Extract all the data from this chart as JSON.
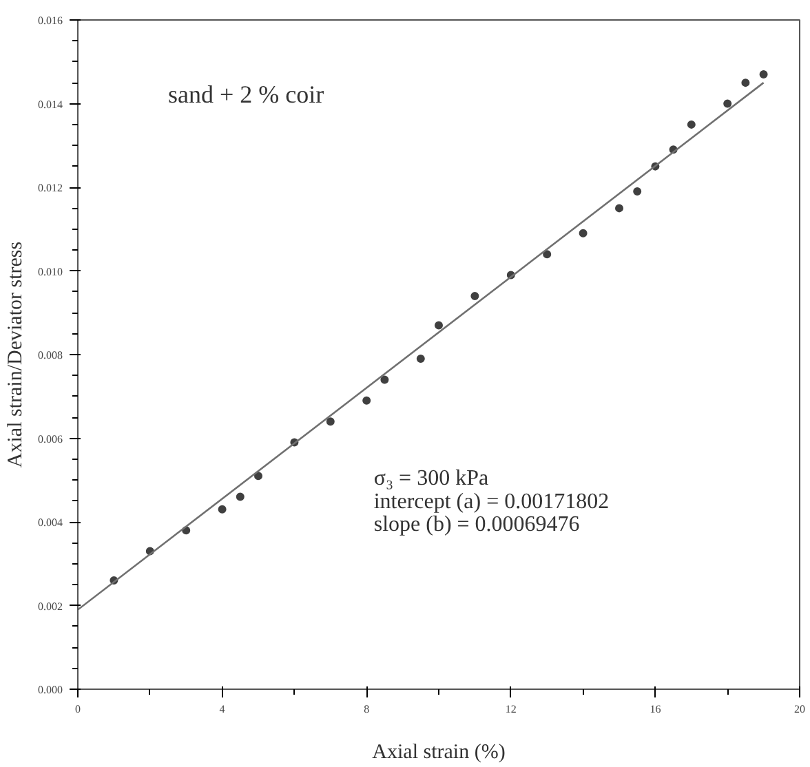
{
  "chart_data": {
    "type": "scatter",
    "xlabel": "Axial strain (%)",
    "ylabel": "Axial strain/Deviator stress",
    "annotations": [
      "sand + 2 % coir",
      "σ₃ = 300 kPa",
      "intercept (a) = 0.00171802",
      "slope (b) = 0.00069476"
    ],
    "series": [
      {
        "color": "#404040",
        "marker": "circle",
        "x": [
          1,
          2,
          3,
          4,
          4.5,
          5,
          6,
          7,
          8,
          8.5,
          9.5,
          10,
          11,
          12,
          13,
          14,
          15,
          15.5,
          16,
          16.5,
          17,
          18,
          18.5,
          19
        ],
        "values": [
          0.0026,
          0.0033,
          0.0038,
          0.0043,
          0.0046,
          0.0051,
          0.0059,
          0.0064,
          0.0069,
          0.0074,
          0.0079,
          0.0087,
          0.0094,
          0.0099,
          0.0104,
          0.0109,
          0.0115,
          0.0119,
          0.0125,
          0.0129,
          0.0135,
          0.014,
          0.0145,
          0.0147
        ]
      },
      {
        "type": "line",
        "color": "#707070",
        "marker": "none",
        "x": [
          0,
          19
        ],
        "values": [
          0.0019,
          0.0145
        ]
      }
    ],
    "grid": false,
    "xlim": [
      0,
      20
    ],
    "xticks": [
      0,
      4,
      8,
      12,
      16,
      20
    ],
    "ylim": [
      0,
      0.016
    ],
    "yticks": [
      {
        "value": 0,
        "label": "0.000"
      },
      {
        "value": 0.002,
        "label": "0.002"
      },
      {
        "value": 0.004,
        "label": "0.004"
      },
      {
        "value": 0.006,
        "label": "0.006"
      },
      {
        "value": 0.008,
        "label": "0.008"
      },
      {
        "value": 0.01,
        "label": "0.010"
      },
      {
        "value": 0.012,
        "label": "0.012"
      },
      {
        "value": 0.014,
        "label": "0.014"
      },
      {
        "value": 0.016,
        "label": "0.016"
      }
    ]
  }
}
